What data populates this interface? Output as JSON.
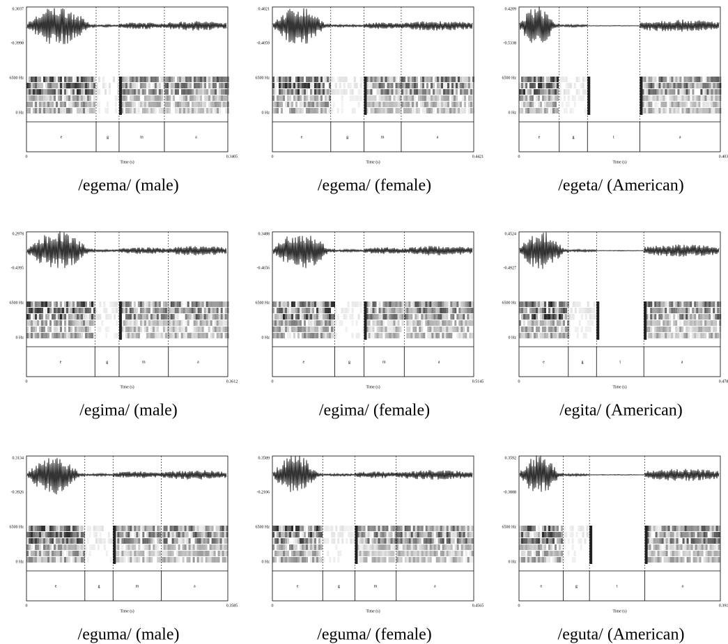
{
  "panels": [
    {
      "amp_max": "0.3037",
      "amp_min": "-0.3998",
      "freq_max": "6500 Hz",
      "freq_min": "0 Hz",
      "segments": [
        "e",
        "g",
        "m",
        "a"
      ],
      "time_label": "Time (s)",
      "time_start": "0",
      "time_end": "0.3405",
      "caption": "/egema/ (male)"
    },
    {
      "amp_max": "0.4021",
      "amp_min": "-0.4059",
      "freq_max": "6500 Hz",
      "freq_min": "0 Hz",
      "segments": [
        "e",
        "g",
        "m",
        "a"
      ],
      "time_label": "Time (s)",
      "time_start": "0",
      "time_end": "0.4421",
      "caption": "/egema/ (female)"
    },
    {
      "amp_max": "0.4209",
      "amp_min": "-0.5338",
      "freq_max": "6500 Hz",
      "freq_min": "0 Hz",
      "segments": [
        "e",
        "g",
        "t",
        "a"
      ],
      "time_label": "Time (s)",
      "time_start": "0",
      "time_end": "0.4037",
      "caption": "/egeta/ (American)"
    },
    {
      "amp_max": "0.2978",
      "amp_min": "-0.4395",
      "freq_max": "6500 Hz",
      "freq_min": "0 Hz",
      "segments": [
        "e",
        "g",
        "m",
        "a"
      ],
      "time_label": "Time (s)",
      "time_start": "0",
      "time_end": "0.3612",
      "caption": "/egima/ (male)"
    },
    {
      "amp_max": "0.3488",
      "amp_min": "-0.4656",
      "freq_max": "6500 Hz",
      "freq_min": "0 Hz",
      "segments": [
        "e",
        "g",
        "m",
        "a"
      ],
      "time_label": "Time (s)",
      "time_start": "0",
      "time_end": "0.5145",
      "caption": "/egima/ (female)"
    },
    {
      "amp_max": "0.4524",
      "amp_min": "-0.4927",
      "freq_max": "6500 Hz",
      "freq_min": "0 Hz",
      "segments": [
        "e",
        "g",
        "t",
        "a"
      ],
      "time_label": "Time (s)",
      "time_start": "0",
      "time_end": "0.4785",
      "caption": "/egita/ (American)"
    },
    {
      "amp_max": "0.3134",
      "amp_min": "-0.3926",
      "freq_max": "6500 Hz",
      "freq_min": "0 Hz",
      "segments": [
        "e",
        "g",
        "m",
        "a"
      ],
      "time_label": "Time (s)",
      "time_start": "0",
      "time_end": "0.3585",
      "caption": "/eguma/ (male)"
    },
    {
      "amp_max": "0.3589",
      "amp_min": "-0.2106",
      "freq_max": "6500 Hz",
      "freq_min": "0 Hz",
      "segments": [
        "e",
        "g",
        "m",
        "a"
      ],
      "time_label": "Time (s)",
      "time_start": "0",
      "time_end": "0.4565",
      "caption": "/eguma/ (female)"
    },
    {
      "amp_max": "0.3592",
      "amp_min": "-0.3888",
      "freq_max": "6500 Hz",
      "freq_min": "0 Hz",
      "segments": [
        "e",
        "g",
        "t",
        "a"
      ],
      "time_label": "Time (s)",
      "time_start": "0",
      "time_end": "0.3914",
      "caption": "/eguta/ (American)"
    }
  ]
}
